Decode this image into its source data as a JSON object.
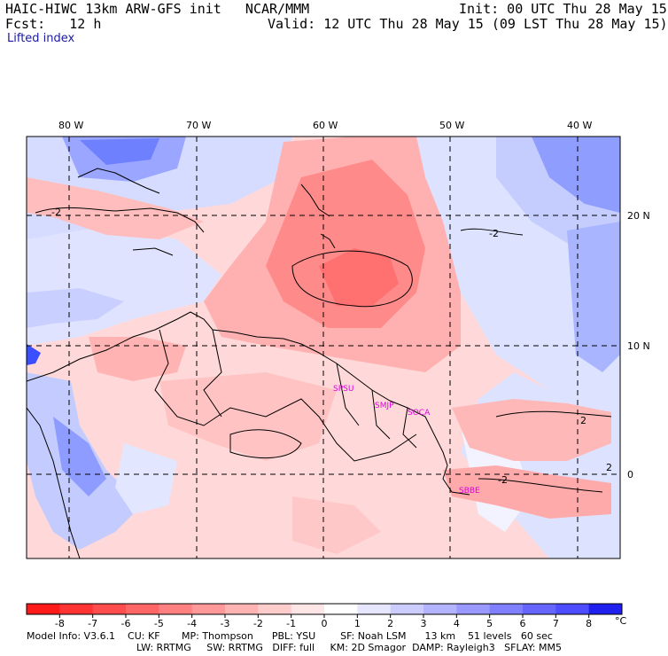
{
  "header": {
    "title": "HAIC-HIWC 13km ARW-GFS init   NCAR/MMM",
    "fcst": "Fcst:   12 h",
    "init": "Init: 00 UTC Thu 28 May 15",
    "valid": "Valid: 12 UTC Thu 28 May 15 (09 LST Thu 28 May 15)",
    "field": "Lifted index"
  },
  "map": {
    "lon_labels": [
      "80 W",
      "70 W",
      "60 W",
      "50 W",
      "40 W"
    ],
    "lat_labels": [
      "20 N",
      "10 N",
      "0"
    ],
    "contour_labels": [
      "-2",
      "-2",
      "-2",
      "2",
      "2"
    ],
    "stations": [
      "SPSU",
      "SMJP",
      "SOCA",
      "SBBE"
    ]
  },
  "colorbar": {
    "unit": "°C",
    "ticks": [
      "-8",
      "-7",
      "-6",
      "-5",
      "-4",
      "-3",
      "-2",
      "-1",
      "0",
      "1",
      "2",
      "3",
      "4",
      "5",
      "6",
      "7",
      "8"
    ],
    "colors": [
      "#ff1a1a",
      "#ff3333",
      "#ff4d4d",
      "#ff6666",
      "#ff8080",
      "#ff9999",
      "#ffb3b3",
      "#ffcccc",
      "#ffe6e6",
      "#ffffff",
      "#e6e6ff",
      "#ccccff",
      "#b3b3ff",
      "#9999ff",
      "#8080ff",
      "#6666ff",
      "#4d4dff",
      "#2020ee"
    ]
  },
  "footer": {
    "line1": "Model Info: V3.6.1    CU: KF       MP: Thompson      PBL: YSU        SF: Noah LSM      13 km    51 levels   60 sec",
    "line2": "LW: RRTMG     SW: RRTMG   DIFF: full     KM: 2D Smagor  DAMP: Rayleigh3   SFLAY: MM5"
  }
}
